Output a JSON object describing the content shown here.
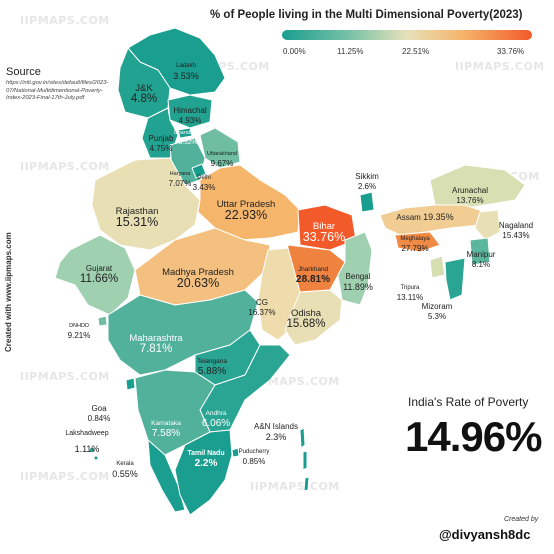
{
  "title": "% of People living in the Multi Dimensional Poverty(2023)",
  "legend": {
    "ticks": [
      "0.00%",
      "11.25%",
      "22.51%",
      "33.76%"
    ],
    "colors": [
      "#1a9e8f",
      "#7cc3a8",
      "#e6e1b8",
      "#f5b56b",
      "#f25a2a"
    ]
  },
  "source": {
    "heading": "Source",
    "url": "https://niti.gov.in/sites/default/files/2023-07/National-Multidimentional-Poverty-Index-2023-Final-17th-July.pdf"
  },
  "credit": "Created with www.iipmaps.com",
  "watermark": "IIPMAPS.COM",
  "national": {
    "heading": "India's Rate of Poverty",
    "value": "14.96%"
  },
  "created_by": {
    "label": "Created by",
    "handle": "@divyansh8dc"
  },
  "states": [
    {
      "name": "Ladakh",
      "value": "3.53%",
      "color": "#1a9e8f"
    },
    {
      "name": "J&K",
      "value": "4.8%",
      "color": "#22a291"
    },
    {
      "name": "Himachal",
      "value": "4.93%",
      "color": "#22a291"
    },
    {
      "name": "Chandigarh",
      "value": "3.52%",
      "color": "#1a9e8f"
    },
    {
      "name": "Punjab",
      "value": "4.75%",
      "color": "#22a291"
    },
    {
      "name": "Uttarakhand",
      "value": "9.67%",
      "color": "#6fbea2"
    },
    {
      "name": "Haryana",
      "value": "7.07%",
      "color": "#52b19b"
    },
    {
      "name": "Delhi",
      "value": "3.43%",
      "color": "#1a9e8f"
    },
    {
      "name": "Rajasthan",
      "value": "15.31%",
      "color": "#e9dfb4"
    },
    {
      "name": "Uttar Pradesh",
      "value": "22.93%",
      "color": "#f5b56b"
    },
    {
      "name": "Bihar",
      "value": "33.76%",
      "color": "#f25a2a"
    },
    {
      "name": "Sikkim",
      "value": "2.6%",
      "color": "#1a9e8f"
    },
    {
      "name": "Arunachal",
      "value": "13.76%",
      "color": "#d8dfb2"
    },
    {
      "name": "Assam",
      "value": "19.35%",
      "color": "#f2cd93"
    },
    {
      "name": "Nagaland",
      "value": "15.43%",
      "color": "#e9dfb4"
    },
    {
      "name": "Meghalaya",
      "value": "27.79%",
      "color": "#f08a45"
    },
    {
      "name": "Manipur",
      "value": "8.1%",
      "color": "#5bb69e"
    },
    {
      "name": "Tripura",
      "value": "13.11%",
      "color": "#d5dfb2"
    },
    {
      "name": "Mizoram",
      "value": "5.3%",
      "color": "#2aa593"
    },
    {
      "name": "Jharkhand",
      "value": "28.81%",
      "color": "#f08240"
    },
    {
      "name": "Bengal",
      "value": "11.89%",
      "color": "#9fd0b0"
    },
    {
      "name": "Gujarat",
      "value": "11.66%",
      "color": "#9fd0b0"
    },
    {
      "name": "Madhya Pradesh",
      "value": "20.63%",
      "color": "#f3c080"
    },
    {
      "name": "CG",
      "value": "16.37%",
      "color": "#eedcac"
    },
    {
      "name": "Odisha",
      "value": "15.68%",
      "color": "#e9dfb4"
    },
    {
      "name": "DNHDD",
      "value": "9.21%",
      "color": "#6fbea2"
    },
    {
      "name": "Maharashtra",
      "value": "7.81%",
      "color": "#52b19b"
    },
    {
      "name": "Telangana",
      "value": "5.88%",
      "color": "#2aa593"
    },
    {
      "name": "Goa",
      "value": "0.84%",
      "color": "#1a9e8f"
    },
    {
      "name": "Karnataka",
      "value": "7.58%",
      "color": "#52b19b"
    },
    {
      "name": "Andhra",
      "value": "6.06%",
      "color": "#2aa593"
    },
    {
      "name": "A&N Islands",
      "value": "2.3%",
      "color": "#1a9e8f"
    },
    {
      "name": "Lakshadweep",
      "value": "1.11%",
      "color": "#1a9e8f"
    },
    {
      "name": "Kerala",
      "value": "0.55%",
      "color": "#1a9e8f"
    },
    {
      "name": "Tamil Nadu",
      "value": "2.2%",
      "color": "#1a9e8f"
    },
    {
      "name": "Puducherry",
      "value": "0.85%",
      "color": "#1a9e8f"
    }
  ]
}
